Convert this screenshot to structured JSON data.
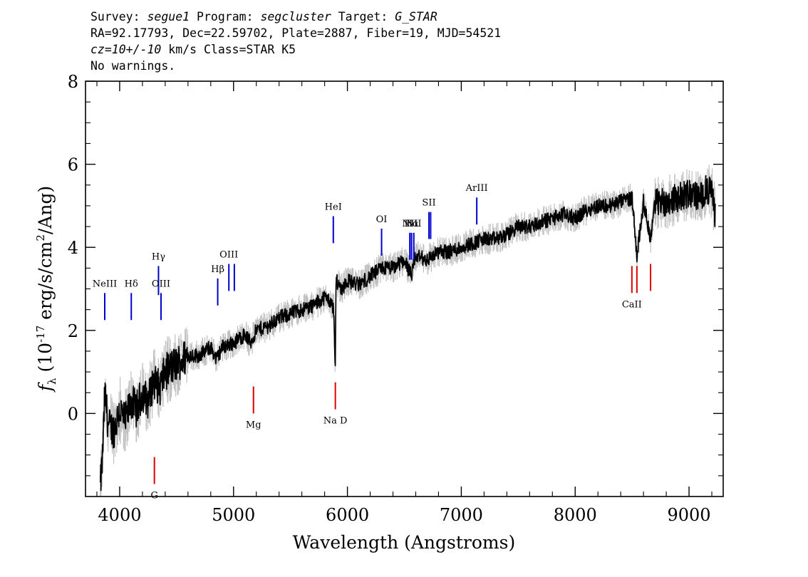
{
  "header": {
    "line1": {
      "survey_label": "Survey: ",
      "survey": "segue1",
      "program_label": " Program: ",
      "program": "segcluster",
      "target_label": " Target: ",
      "target": "G_STAR"
    },
    "line2": "RA=92.17793, Dec=22.59702, Plate=2887, Fiber=19, MJD=54521",
    "line3": {
      "cz": "cz=10+/-10",
      "rest": " km/s Class=STAR K5"
    },
    "line4": "No warnings."
  },
  "chart_data": {
    "type": "line",
    "xlabel": "Wavelength (Angstroms)",
    "ylabel": "fλ (10^-17 erg/s/cm^2/Ang)",
    "xlim": [
      3700,
      9300
    ],
    "ylim": [
      -2,
      8
    ],
    "xticks": [
      4000,
      5000,
      6000,
      7000,
      8000,
      9000
    ],
    "yticks": [
      0,
      2,
      4,
      6,
      8
    ],
    "colors": {
      "flux": "#000000",
      "error_band": "#c0c0c0",
      "emission": "#0000cc",
      "absorption": "#dd0000"
    },
    "series": [
      {
        "x": [
          3830,
          3850,
          3870,
          3900,
          3950,
          4000,
          4050,
          4100,
          4150,
          4200,
          4250,
          4300,
          4350,
          4400,
          4450,
          4500,
          4600,
          4700,
          4800,
          4850,
          4900,
          5000,
          5100,
          5150,
          5200,
          5300,
          5400,
          5500,
          5600,
          5700,
          5800,
          5850,
          5880,
          5893,
          5900,
          5950,
          6000,
          6100,
          6200,
          6300,
          6400,
          6500,
          6563,
          6600,
          6700,
          6800,
          6900,
          7000,
          7100,
          7200,
          7300,
          7400,
          7500,
          7600,
          7700,
          7800,
          7900,
          8000,
          8100,
          8200,
          8300,
          8400,
          8500,
          8542,
          8600,
          8662,
          8700,
          8800,
          8900,
          9000,
          9100,
          9150,
          9200,
          9230
        ],
        "values": [
          -1.8,
          -1.0,
          0.5,
          -0.3,
          -0.4,
          0.1,
          -0.2,
          0.3,
          0.1,
          0.5,
          0.3,
          0.8,
          0.6,
          1.0,
          1.1,
          1.2,
          1.4,
          1.4,
          1.6,
          1.3,
          1.6,
          1.7,
          1.9,
          1.7,
          2.0,
          2.1,
          2.3,
          2.4,
          2.5,
          2.6,
          2.8,
          2.7,
          2.5,
          0.9,
          3.2,
          3.0,
          3.2,
          3.1,
          3.3,
          3.5,
          3.5,
          3.7,
          3.3,
          3.8,
          3.7,
          3.9,
          3.9,
          4.0,
          4.1,
          4.2,
          4.2,
          4.3,
          4.5,
          4.5,
          4.6,
          4.7,
          4.8,
          4.7,
          4.9,
          5.0,
          5.0,
          5.1,
          5.2,
          3.8,
          5.1,
          4.2,
          5.1,
          5.1,
          5.2,
          5.3,
          5.2,
          5.4,
          5.3,
          4.8
        ]
      }
    ],
    "emission_lines": [
      {
        "label": "NeIII",
        "x": 3869,
        "y": [
          2.25,
          2.9
        ]
      },
      {
        "label": "Hδ",
        "x": 4102,
        "y": [
          2.25,
          2.9
        ]
      },
      {
        "label": "Hγ",
        "x": 4341,
        "y": [
          2.85,
          3.55
        ]
      },
      {
        "label": "OIII",
        "x": 4363,
        "y": [
          2.25,
          2.9
        ]
      },
      {
        "label": "Hβ",
        "x": 4861,
        "y": [
          2.6,
          3.25
        ]
      },
      {
        "label": "OIII",
        "x": 4959,
        "y": [
          2.95,
          3.6
        ]
      },
      {
        "label": "",
        "x": 5007,
        "y": [
          2.95,
          3.6
        ]
      },
      {
        "label": "HeI",
        "x": 5876,
        "y": [
          4.1,
          4.75
        ]
      },
      {
        "label": "OI",
        "x": 6300,
        "y": [
          3.8,
          4.45
        ]
      },
      {
        "label": "NII",
        "x": 6548,
        "y": [
          3.7,
          4.35
        ]
      },
      {
        "label": "Hα",
        "x": 6563,
        "y": [
          3.7,
          4.35
        ]
      },
      {
        "label": "NII",
        "x": 6583,
        "y": [
          3.7,
          4.35
        ]
      },
      {
        "label": "SII",
        "x": 6716,
        "y": [
          4.2,
          4.85
        ]
      },
      {
        "label": "",
        "x": 6731,
        "y": [
          4.2,
          4.85
        ]
      },
      {
        "label": "ArIII",
        "x": 7136,
        "y": [
          4.55,
          5.2
        ]
      }
    ],
    "absorption_lines": [
      {
        "label": "G",
        "x": 4305,
        "y": [
          -1.7,
          -1.05
        ]
      },
      {
        "label": "Mg",
        "x": 5175,
        "y": [
          0.0,
          0.65
        ]
      },
      {
        "label": "Na D",
        "x": 5894,
        "y": [
          0.1,
          0.75
        ]
      },
      {
        "label": "CaII",
        "x": 8498,
        "y": [
          2.9,
          3.55
        ]
      },
      {
        "label": "",
        "x": 8542,
        "y": [
          2.9,
          3.55
        ]
      },
      {
        "label": "",
        "x": 8662,
        "y": [
          2.95,
          3.6
        ]
      }
    ]
  }
}
